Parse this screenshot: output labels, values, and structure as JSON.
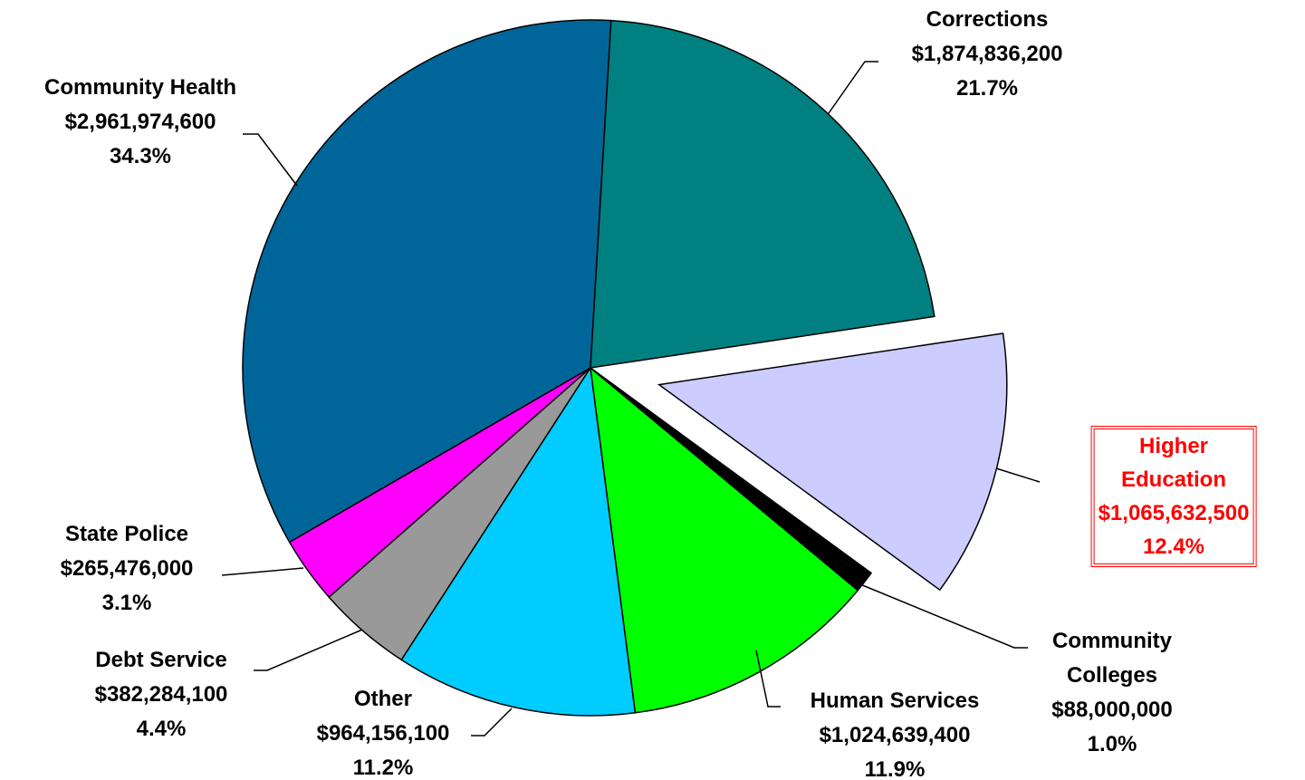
{
  "chart_data": {
    "type": "pie",
    "categories": [
      "Corrections",
      "Higher Education",
      "Community Colleges",
      "Human Services",
      "Other",
      "Debt Service",
      "State Police",
      "Community Health"
    ],
    "values": [
      21.7,
      12.4,
      1.0,
      11.9,
      11.2,
      4.4,
      3.1,
      34.3
    ],
    "value_labels": [
      "21.7%",
      "12.4%",
      "1.0%",
      "11.9%",
      "11.2%",
      "4.4%",
      "3.1%",
      "34.3%"
    ],
    "amounts": [
      1874836200,
      1065632500,
      88000000,
      1024639400,
      964156100,
      382284100,
      265476000,
      2961974600
    ],
    "amount_labels": [
      "$1,874,836,200",
      "$1,065,632,500",
      "$88,000,000",
      "$1,024,639,400",
      "$964,156,100",
      "$382,284,100",
      "$265,476,000",
      "$2,961,974,600"
    ],
    "colors": [
      "#008080",
      "#ccccff",
      "#000000",
      "#00ff00",
      "#00ccff",
      "#999999",
      "#ff00ff",
      "#006699"
    ],
    "explode": "Higher Education",
    "highlight_color": "#ff0000"
  }
}
